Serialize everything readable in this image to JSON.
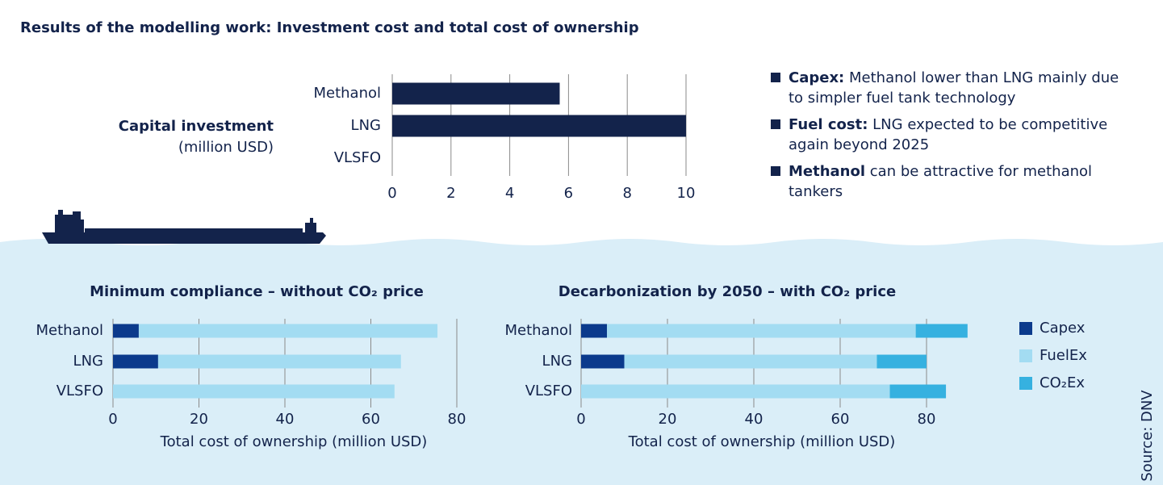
{
  "title": "Results of the modelling work: Investment cost and total cost of ownership",
  "bullets": [
    {
      "bold": "Capex:",
      "text": "Methanol lower than LNG mainly due to simpler fuel tank technology"
    },
    {
      "bold": "Fuel cost:",
      "text": "LNG expected to be competitive again beyond 2025"
    },
    {
      "bold": "Methanol",
      "text": "can be attractive for methanol tankers"
    }
  ],
  "source": "Source: DNV",
  "chart_data": [
    {
      "type": "bar",
      "orientation": "horizontal",
      "title": "Capital investment",
      "subtitle": "(million USD)",
      "categories": [
        "Methanol",
        "LNG",
        "VLSFO"
      ],
      "values": [
        5.7,
        10,
        0
      ],
      "color": "#13234b",
      "xlim": [
        0,
        10
      ],
      "xticks": [
        0,
        2,
        4,
        6,
        8,
        10
      ],
      "grid": true
    },
    {
      "type": "bar",
      "orientation": "horizontal",
      "stacked": true,
      "title": "Minimum compliance – without CO₂ price",
      "xlabel": "Total cost of ownership (million USD)",
      "categories": [
        "Methanol",
        "LNG",
        "VLSFO"
      ],
      "series": [
        {
          "color": "#0b3a8c",
          "values": [
            6,
            10.5,
            0
          ]
        },
        {
          "color": "#a3dcf2",
          "values": [
            69.5,
            56.5,
            65.5
          ]
        }
      ],
      "xlim": [
        0,
        80
      ],
      "xticks": [
        0,
        20,
        40,
        60,
        80
      ],
      "grid": true
    },
    {
      "type": "bar",
      "orientation": "horizontal",
      "stacked": true,
      "title": "Decarbonization by 2050 – with CO₂ price",
      "xlabel": "Total cost of ownership (million USD)",
      "categories": [
        "Methanol",
        "LNG",
        "VLSFO"
      ],
      "series": [
        {
          "name": "Capex",
          "color": "#0b3a8c",
          "values": [
            6,
            10,
            0
          ]
        },
        {
          "name": "FuelEx",
          "color": "#a3dcf2",
          "values": [
            71.5,
            58.5,
            71.5
          ]
        },
        {
          "name": "CO₂Ex",
          "color": "#36b1e0",
          "values": [
            12,
            11.5,
            13
          ]
        }
      ],
      "xlim": [
        0,
        80
      ],
      "xticks": [
        0,
        20,
        40,
        60,
        80
      ],
      "grid": true,
      "legend": "right"
    }
  ]
}
